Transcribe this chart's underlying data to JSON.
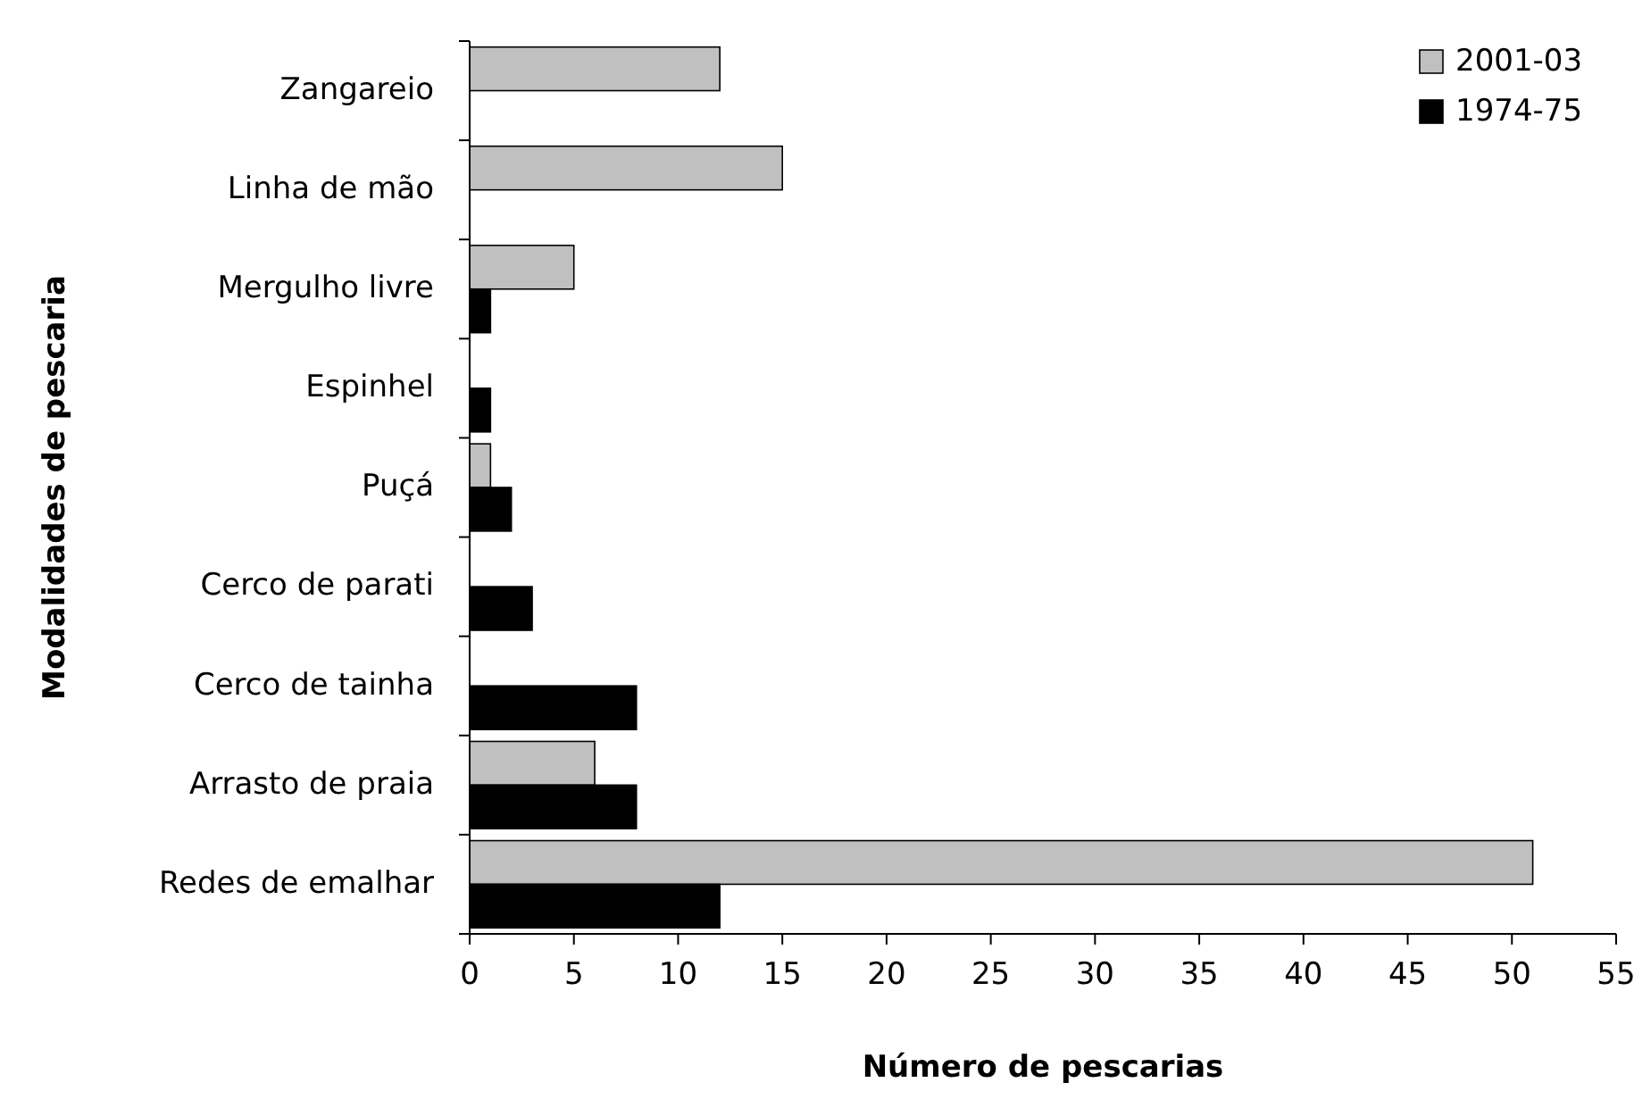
{
  "chart_data": {
    "type": "bar",
    "orientation": "horizontal",
    "xlabel": "Número de pescarias",
    "ylabel": "Modalidades de pescaria",
    "categories": [
      "Zangareio",
      "Linha de mão",
      "Mergulho livre",
      "Espinhel",
      "Puçá",
      "Cerco de parati",
      "Cerco de tainha",
      "Arrasto de praia",
      "Redes de emalhar"
    ],
    "series": [
      {
        "name": "2001-03",
        "color": "#c0c0c0",
        "values": [
          12,
          15,
          5,
          0,
          1,
          0,
          0,
          6,
          51
        ]
      },
      {
        "name": "1974-75",
        "color": "#000000",
        "values": [
          0,
          0,
          1,
          1,
          2,
          3,
          8,
          8,
          12
        ]
      }
    ],
    "xlim": [
      0,
      55
    ],
    "xticks": [
      0,
      5,
      10,
      15,
      20,
      25,
      30,
      35,
      40,
      45,
      50,
      55
    ],
    "grid": false,
    "legend": "top right"
  }
}
